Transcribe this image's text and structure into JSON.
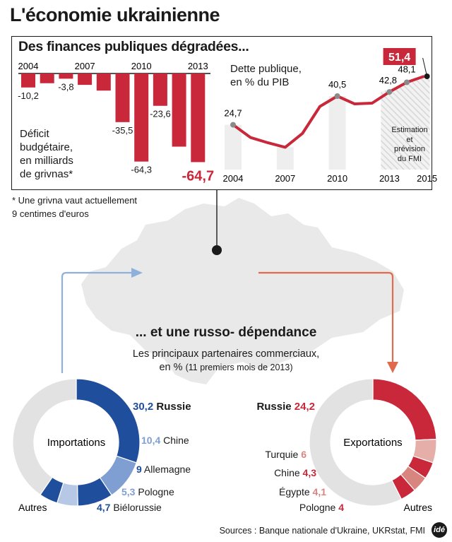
{
  "title": "L'économie ukrainienne",
  "panel": {
    "title": "Des finances publiques dégradées...",
    "deficit_label": [
      "Déficit",
      "budgétaire,",
      "en milliards",
      "de grivnas*"
    ],
    "debt_label": [
      "Dette publique,",
      "en % du PIB"
    ],
    "forecast_label": [
      "Estimation",
      "et",
      "prévision",
      "du FMI"
    ]
  },
  "footnote": [
    "* Une grivna vaut actuellement",
    "9 centimes d'euros"
  ],
  "section2": {
    "title": "... et une russo- dépendance",
    "subtitle_main": "Les principaux partenaires commerciaux,",
    "subtitle_unit": "en % ",
    "subtitle_note": "(11 premiers mois de 2013)"
  },
  "sources": "Sources : Banque nationale d'Ukraine, UKRstat, FMI",
  "logo": "idé",
  "colors": {
    "deficit": "#c8283a",
    "import_main": "#1f4e9c",
    "import_light": "#7f9fd3",
    "import_pale": "#b6c8e6",
    "export_main": "#c8283a",
    "export_light": "#d9857f",
    "export_pale": "#e5aea9",
    "gray": "#e2e2e2",
    "map": "#e9e9e9"
  },
  "chart_data": [
    {
      "type": "bar",
      "title": "",
      "categories": [
        "2004",
        "2005",
        "2006",
        "2007",
        "2008",
        "2009",
        "2010",
        "2011",
        "2012",
        "2013"
      ],
      "x_tick_labels": [
        "2004",
        "2007",
        "2010",
        "2013"
      ],
      "values": [
        -10.2,
        -7.1,
        -3.8,
        -8.3,
        -12.5,
        -35.5,
        -64.3,
        -23.6,
        -53.4,
        -64.7
      ],
      "value_labels": [
        "-10,2",
        "",
        "-3,8",
        "",
        "",
        "-35,5",
        "-64,3",
        "-23,6",
        "",
        "-64,7"
      ],
      "ylim": [
        -65,
        0
      ]
    },
    {
      "type": "line",
      "title": "",
      "x": [
        2004,
        2005,
        2006,
        2007,
        2008,
        2009,
        2010,
        2011,
        2012,
        2013,
        2014,
        2015
      ],
      "y": [
        24.7,
        17.7,
        14.8,
        12.3,
        20.0,
        34.8,
        40.5,
        36.2,
        36.6,
        42.8,
        48.1,
        51.4
      ],
      "value_labels": [
        "24,7",
        "",
        "",
        "",
        "",
        "",
        "40,5",
        "",
        "",
        "42,8",
        "48,1",
        "51,4"
      ],
      "x_tick_labels": [
        "2004",
        "2007",
        "2010",
        "2013",
        "2015"
      ],
      "forecast_from": 2014,
      "ylim": [
        0,
        60
      ]
    },
    {
      "type": "pie",
      "title": "",
      "center_label": "Importations",
      "slices": [
        {
          "name": "Russie",
          "value": 30.2,
          "label": "30,2"
        },
        {
          "name": "Chine",
          "value": 10.4,
          "label": "10,4"
        },
        {
          "name": "Allemagne",
          "value": 9,
          "label": "9"
        },
        {
          "name": "Pologne",
          "value": 5.3,
          "label": "5,3"
        },
        {
          "name": "Biélorussie",
          "value": 4.7,
          "label": "4,7"
        },
        {
          "name": "Autres",
          "value": 40.4,
          "label": ""
        }
      ]
    },
    {
      "type": "pie",
      "title": "",
      "center_label": "Exportations",
      "slices": [
        {
          "name": "Russie",
          "value": 24.2,
          "label": "24,2"
        },
        {
          "name": "Turquie",
          "value": 6,
          "label": "6"
        },
        {
          "name": "Chine",
          "value": 4.3,
          "label": "4,3"
        },
        {
          "name": "Égypte",
          "value": 4.1,
          "label": "4,1"
        },
        {
          "name": "Pologne",
          "value": 4,
          "label": "4"
        },
        {
          "name": "Autres",
          "value": 57.4,
          "label": ""
        }
      ]
    }
  ]
}
